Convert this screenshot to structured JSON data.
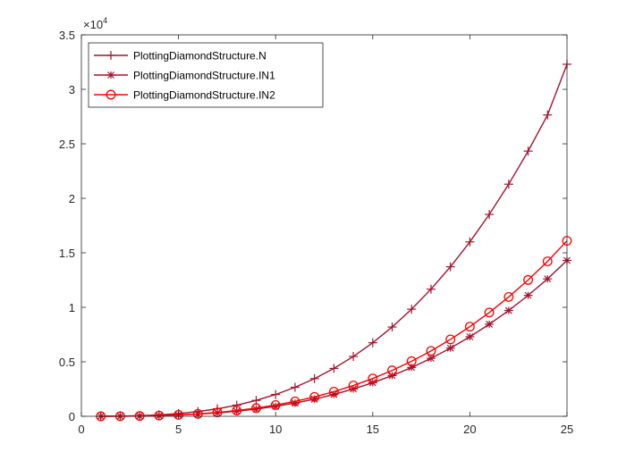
{
  "chart_data": {
    "type": "line",
    "title": "",
    "xlabel": "",
    "ylabel": "",
    "y_exponent_label": "×10",
    "y_exponent_power": "4",
    "xlim": [
      0,
      25
    ],
    "ylim": [
      0,
      35000
    ],
    "x_ticks": [
      0,
      5,
      10,
      15,
      20,
      25
    ],
    "x_tick_labels": [
      "0",
      "5",
      "10",
      "15",
      "20",
      "25"
    ],
    "y_ticks": [
      0,
      5000,
      10000,
      15000,
      20000,
      25000,
      30000,
      35000
    ],
    "y_tick_labels": [
      "0",
      "0.5",
      "1",
      "1.5",
      "2",
      "2.5",
      "3",
      "3.5"
    ],
    "grid": false,
    "legend_position": "top-left",
    "x": [
      1,
      2,
      3,
      4,
      5,
      6,
      7,
      8,
      9,
      10,
      11,
      12,
      13,
      14,
      15,
      16,
      17,
      18,
      19,
      20,
      21,
      22,
      23,
      24,
      25
    ],
    "series": [
      {
        "name": "PlottingDiamondStructure.N",
        "color": "#a2142f",
        "marker": "plus",
        "values": [
          2,
          16,
          54,
          128,
          250,
          432,
          686,
          1024,
          1458,
          2000,
          2662,
          3456,
          4394,
          5488,
          6750,
          8192,
          9826,
          11664,
          13718,
          16000,
          18522,
          21296,
          24334,
          27648,
          32300
        ]
      },
      {
        "name": "PlottingDiamondStructure.IN1",
        "color": "#a2142f",
        "marker": "asterisk",
        "values": [
          1,
          7,
          24,
          57,
          114,
          197,
          313,
          467,
          665,
          912,
          1214,
          1576,
          2004,
          2503,
          3078,
          3735,
          4480,
          5318,
          6255,
          7296,
          8446,
          9711,
          11096,
          12607,
          14300
        ]
      },
      {
        "name": "PlottingDiamondStructure.IN2",
        "color": "#ff0000",
        "marker": "circle",
        "values": [
          1,
          8,
          28,
          65,
          128,
          221,
          352,
          526,
          749,
          1028,
          1368,
          1776,
          2258,
          2821,
          3470,
          4212,
          5052,
          5997,
          7053,
          8226,
          9523,
          10949,
          12511,
          14215,
          16100
        ]
      }
    ]
  }
}
